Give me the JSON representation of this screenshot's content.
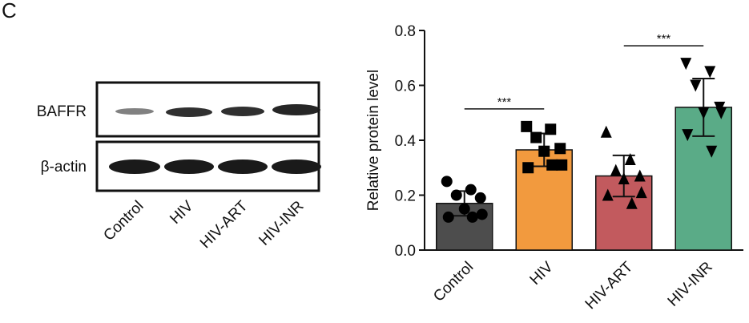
{
  "panel_label": "C",
  "blot": {
    "rows": [
      "BAFFR",
      "β-actin"
    ],
    "lanes": [
      "Control",
      "HIV",
      "HIV-ART",
      "HIV-INR"
    ]
  },
  "chart_data": {
    "type": "bar",
    "y_label": "Relative protein level",
    "categories": [
      "Control",
      "HIV",
      "HIV-ART",
      "HIV-INR"
    ],
    "values": [
      0.17,
      0.365,
      0.27,
      0.52
    ],
    "errors": [
      0.045,
      0.06,
      0.075,
      0.105
    ],
    "points": [
      [
        0.25,
        0.22,
        0.2,
        0.19,
        0.15,
        0.13,
        0.12,
        0.12
      ],
      [
        0.45,
        0.44,
        0.41,
        0.37,
        0.36,
        0.31,
        0.3,
        0.31
      ],
      [
        0.43,
        0.33,
        0.29,
        0.27,
        0.26,
        0.21,
        0.2,
        0.17
      ],
      [
        0.68,
        0.65,
        0.6,
        0.52,
        0.5,
        0.5,
        0.42,
        0.36
      ]
    ],
    "colors": [
      "#4d4d4d",
      "#f29a3e",
      "#c25a5e",
      "#5aab87"
    ],
    "markers": [
      "circle",
      "square",
      "triangle-up",
      "triangle-down"
    ],
    "annotations": [
      {
        "text": "***",
        "between": [
          "Control",
          "HIV"
        ]
      },
      {
        "text": "***",
        "between": [
          "HIV-ART",
          "HIV-INR"
        ]
      }
    ],
    "ylim": [
      0,
      0.8
    ],
    "yticks": [
      {
        "value": 0,
        "label": "0.0"
      },
      0.2,
      0.4,
      0.6,
      0.8
    ]
  }
}
